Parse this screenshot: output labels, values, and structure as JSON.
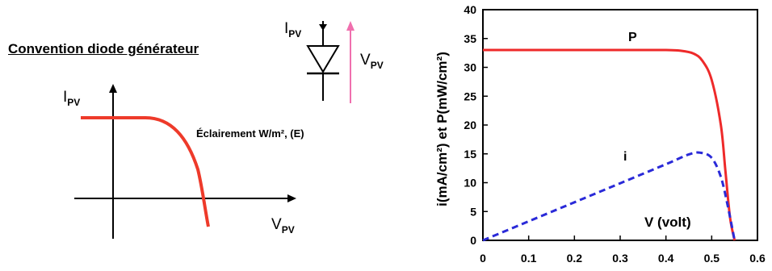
{
  "left_panel": {
    "title": "Convention diode générateur",
    "y_axis_label": "I",
    "y_axis_sub": "PV",
    "x_axis_label": "V",
    "x_axis_sub": "PV",
    "curve_label": "Éclairement W/m², (E)",
    "curve_color": "#ee3a2a",
    "diode_current_label": "I",
    "diode_current_sub": "PV",
    "diode_voltage_label": "V",
    "diode_voltage_sub": "PV",
    "voltage_arrow_color": "#f06fae"
  },
  "chart_data": {
    "type": "line",
    "xlabel": "V (volt)",
    "ylabel": "i(mA/cm²)  et  P(mW/cm²)",
    "xlim": [
      0,
      0.6
    ],
    "ylim": [
      0,
      40
    ],
    "x_ticks": [
      "0",
      "0.1",
      "0.2",
      "0.3",
      "0.4",
      "0.5",
      "0.6"
    ],
    "y_ticks": [
      "0",
      "5",
      "10",
      "15",
      "20",
      "25",
      "30",
      "35",
      "40"
    ],
    "grid": false,
    "series": [
      {
        "name": "P",
        "color": "#ee2a2a",
        "style": "solid",
        "x": [
          0,
          0.1,
          0.2,
          0.3,
          0.4,
          0.43,
          0.46,
          0.48,
          0.5,
          0.52,
          0.53,
          0.54,
          0.55
        ],
        "values": [
          33,
          33,
          33,
          33,
          33,
          32.9,
          32.4,
          31.1,
          27.8,
          20,
          12,
          4,
          0
        ]
      },
      {
        "name": "i",
        "color": "#2a2ad8",
        "style": "dashed",
        "x": [
          0,
          0.1,
          0.2,
          0.3,
          0.4,
          0.45,
          0.475,
          0.5,
          0.52,
          0.535,
          0.55
        ],
        "values": [
          0,
          3.3,
          6.6,
          9.9,
          13.2,
          14.9,
          15.2,
          14.3,
          11,
          6,
          0
        ]
      }
    ]
  }
}
